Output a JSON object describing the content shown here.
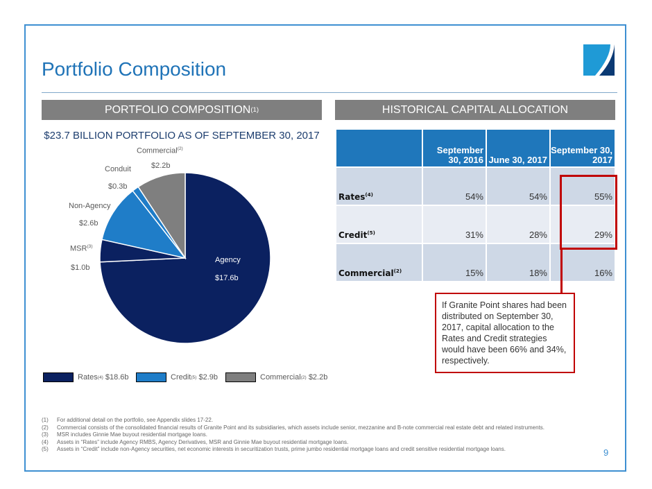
{
  "title": "Portfolio Composition",
  "left_header": {
    "text": "PORTFOLIO COMPOSITION",
    "sup": "(1)"
  },
  "right_header": "HISTORICAL CAPITAL ALLOCATION",
  "chart_data": {
    "type": "pie",
    "title": "$23.7 BILLION PORTFOLIO AS OF SEPTEMBER 30, 2017",
    "slices": [
      {
        "name": "Agency",
        "sup": "",
        "value": 17.6,
        "label": "$17.6b",
        "color": "#0b2160"
      },
      {
        "name": "MSR",
        "sup": "(3)",
        "value": 1.0,
        "label": "$1.0b",
        "color": "#0b2160"
      },
      {
        "name": "Non-Agency",
        "sup": "",
        "value": 2.6,
        "label": "$2.6b",
        "color": "#1f7dc8"
      },
      {
        "name": "Conduit",
        "sup": "",
        "value": 0.3,
        "label": "$0.3b",
        "color": "#1f7dc8"
      },
      {
        "name": "Commercial",
        "sup": "(2)",
        "value": 2.2,
        "label": "$2.2b",
        "color": "#7f7f7f"
      }
    ],
    "legend": [
      {
        "name": "Rates",
        "sup": "(4)",
        "value": "$18.6b",
        "color": "#0b2160"
      },
      {
        "name": "Credit",
        "sup": "(5)",
        "value": "$2.9b",
        "color": "#1f7dc8"
      },
      {
        "name": "Commercial",
        "sup": "(2)",
        "value": "$2.2b",
        "color": "#7f7f7f"
      }
    ],
    "legend_position": "bottom"
  },
  "table": {
    "columns": [
      "September 30, 2016",
      "June 30, 2017",
      "September 30, 2017"
    ],
    "rows": [
      {
        "label": "Rates",
        "sup": "(4)",
        "values": [
          "54%",
          "54%",
          "55%"
        ]
      },
      {
        "label": "Credit",
        "sup": "(5)",
        "values": [
          "31%",
          "28%",
          "29%"
        ]
      },
      {
        "label": "Commercial",
        "sup": "(2)",
        "values": [
          "15%",
          "18%",
          "16%"
        ]
      }
    ]
  },
  "callout": "If Granite Point shares had been distributed on September 30, 2017, capital allocation to the Rates  and Credit strategies would have been 66% and 34%, respectively.",
  "footnotes": [
    {
      "num": "(1)",
      "text": "For additional detail on the portfolio, see Appendix slides 17-22."
    },
    {
      "num": "(2)",
      "text": "Commercial consists of the consolidated financial results of Granite Point and its subsidiaries, which assets include senior, mezzanine and B-note commercial real estate debt and related instruments."
    },
    {
      "num": "(3)",
      "text": "MSR includes Ginnie Mae buyout residential mortgage loans."
    },
    {
      "num": "(4)",
      "text": "Assets in “Rates” include Agency RMBS, Agency Derivatives, MSR and Ginnie Mae buyout residential mortgage loans."
    },
    {
      "num": "(5)",
      "text": "Assets in “Credit” include non-Agency securities, net economic interests in securitization trusts, prime jumbo residential mortgage loans and credit sensitive residential mortgage loans."
    }
  ],
  "page_number": "9"
}
